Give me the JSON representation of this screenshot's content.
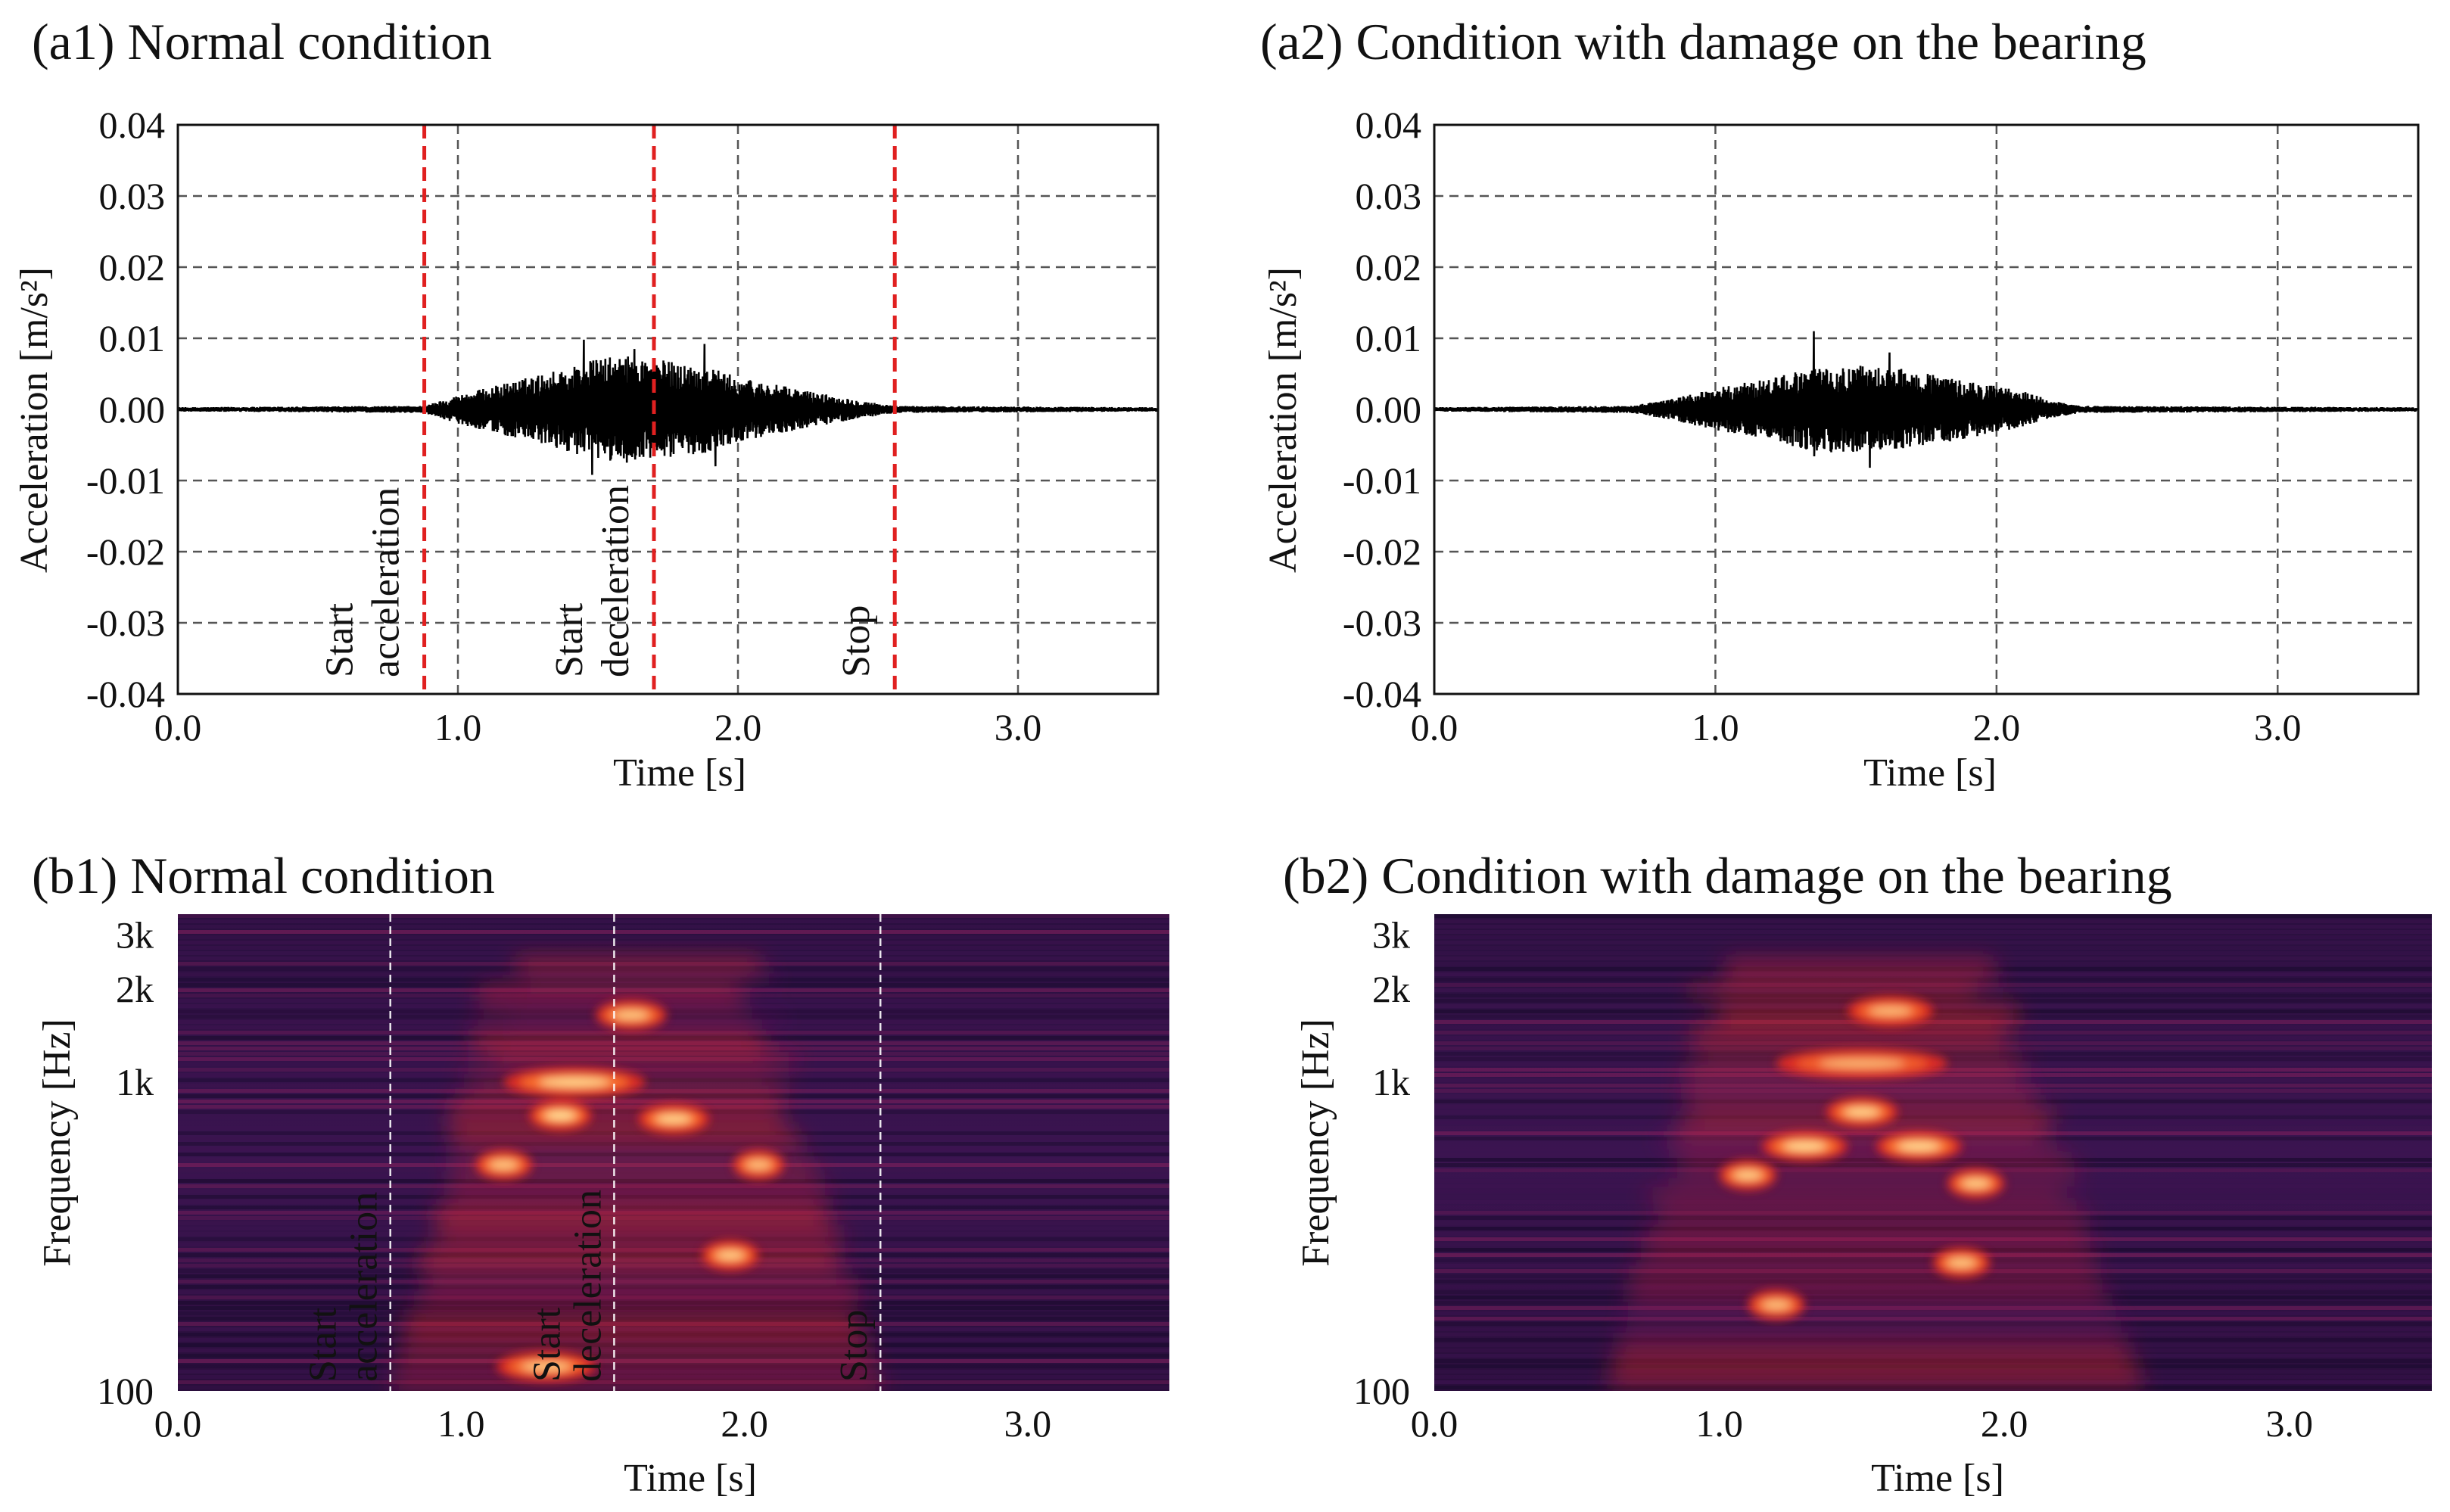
{
  "chart_data": [
    {
      "type": "line",
      "title": "(a1) Normal condition",
      "xlabel": "Time [s]",
      "ylabel": "Acceleration [m/s²]",
      "xlim": [
        0.0,
        3.5
      ],
      "ylim": [
        -0.04,
        0.04
      ],
      "xticks": [
        "0.0",
        "1.0",
        "2.0",
        "3.0"
      ],
      "yticks": [
        "0.04",
        "0.03",
        "0.02",
        "0.01",
        "0.00",
        "-0.01",
        "-0.02",
        "-0.03",
        "-0.04"
      ],
      "grid": true,
      "envelope": {
        "x": [
          0.0,
          0.88,
          1.0,
          1.2,
          1.4,
          1.5,
          1.6,
          1.7,
          1.8,
          1.9,
          2.0,
          2.2,
          2.4,
          2.56,
          3.5
        ],
        "upper": [
          0.0003,
          0.0005,
          0.002,
          0.004,
          0.006,
          0.0072,
          0.0075,
          0.0072,
          0.0065,
          0.006,
          0.0045,
          0.003,
          0.0015,
          0.0005,
          0.0003
        ],
        "lower": [
          -0.0003,
          -0.0005,
          -0.002,
          -0.004,
          -0.006,
          -0.0072,
          -0.0075,
          -0.0072,
          -0.0065,
          -0.006,
          -0.0045,
          -0.003,
          -0.0015,
          -0.0005,
          -0.0003
        ],
        "peaks": [
          {
            "x": 1.45,
            "y": 0.0098
          },
          {
            "x": 1.48,
            "y": -0.0092
          },
          {
            "x": 1.63,
            "y": 0.0085
          },
          {
            "x": 1.88,
            "y": 0.0092
          },
          {
            "x": 1.92,
            "y": -0.008
          }
        ]
      },
      "markers": [
        {
          "x": 0.88,
          "label_line1": "Start",
          "label_line2": "acceleration"
        },
        {
          "x": 1.7,
          "label_line1": "Start",
          "label_line2": "deceleration"
        },
        {
          "x": 2.56,
          "label_line1": "",
          "label_line2": "Stop"
        }
      ],
      "marker_color": "#e02020"
    },
    {
      "type": "line",
      "title": "(a2) Condition with damage on the bearing",
      "xlabel": "Time [s]",
      "ylabel": "Acceleration [m/s²]",
      "xlim": [
        0.0,
        3.5
      ],
      "ylim": [
        -0.04,
        0.04
      ],
      "xticks": [
        "0.0",
        "1.0",
        "2.0",
        "3.0"
      ],
      "yticks": [
        "0.04",
        "0.03",
        "0.02",
        "0.01",
        "0.00",
        "-0.01",
        "-0.02",
        "-0.03",
        "-0.04"
      ],
      "grid": true,
      "envelope": {
        "x": [
          0.0,
          0.7,
          0.85,
          1.0,
          1.2,
          1.3,
          1.4,
          1.5,
          1.6,
          1.7,
          1.9,
          2.1,
          2.2,
          2.3,
          3.5
        ],
        "upper": [
          0.0003,
          0.0005,
          0.0015,
          0.003,
          0.0045,
          0.0055,
          0.006,
          0.0062,
          0.006,
          0.0055,
          0.004,
          0.0025,
          0.0012,
          0.0005,
          0.0003
        ],
        "lower": [
          -0.0003,
          -0.0005,
          -0.0015,
          -0.003,
          -0.0045,
          -0.0055,
          -0.006,
          -0.0062,
          -0.006,
          -0.0055,
          -0.004,
          -0.0025,
          -0.0012,
          -0.0005,
          -0.0003
        ],
        "peaks": [
          {
            "x": 1.35,
            "y": 0.011
          },
          {
            "x": 1.55,
            "y": -0.0082
          },
          {
            "x": 1.62,
            "y": 0.008
          }
        ]
      },
      "markers": []
    },
    {
      "type": "heatmap",
      "title": "(b1) Normal condition",
      "xlabel": "Time [s]",
      "ylabel": "Frequency [Hz]",
      "xlim": [
        0.0,
        3.5
      ],
      "ylim": [
        100,
        3500
      ],
      "yscale": "log",
      "xticks": [
        "0.0",
        "1.0",
        "2.0",
        "3.0"
      ],
      "yticks": [
        "3k",
        "2k",
        "1k",
        "100"
      ],
      "colormap": [
        "#1a0b2e",
        "#3d1450",
        "#7a1f5c",
        "#c4213a",
        "#f0301e",
        "#ff7a30",
        "#ffe39a"
      ],
      "activity": {
        "start": 0.75,
        "end": 2.5
      },
      "hot_spots": [
        {
          "t": 1.4,
          "f": 1000,
          "w": 0.5,
          "i": 0.9
        },
        {
          "t": 1.35,
          "f": 780,
          "w": 0.22,
          "i": 1.0
        },
        {
          "t": 1.75,
          "f": 760,
          "w": 0.25,
          "i": 0.9
        },
        {
          "t": 1.6,
          "f": 1650,
          "w": 0.25,
          "i": 0.8
        },
        {
          "t": 1.15,
          "f": 540,
          "w": 0.2,
          "i": 0.8
        },
        {
          "t": 2.05,
          "f": 540,
          "w": 0.18,
          "i": 0.75
        },
        {
          "t": 1.95,
          "f": 275,
          "w": 0.2,
          "i": 0.85
        },
        {
          "t": 1.3,
          "f": 120,
          "w": 0.35,
          "i": 0.8
        }
      ],
      "markers": [
        {
          "x": 0.75,
          "label_line1": "Start",
          "label_line2": "acceleration"
        },
        {
          "x": 1.54,
          "label_line1": "Start",
          "label_line2": "deceleration"
        },
        {
          "x": 2.48,
          "label_line1": "",
          "label_line2": "Stop"
        }
      ],
      "marker_color": "#ffffff"
    },
    {
      "type": "heatmap",
      "title": "(b2) Condition with damage on the bearing",
      "xlabel": "Time [s]",
      "ylabel": "Frequency [Hz]",
      "xlim": [
        0.0,
        3.5
      ],
      "ylim": [
        100,
        3500
      ],
      "yscale": "log",
      "xticks": [
        "0.0",
        "1.0",
        "2.0",
        "3.0"
      ],
      "yticks": [
        "3k",
        "2k",
        "1k",
        "100"
      ],
      "colormap": [
        "#1a0b2e",
        "#3d1450",
        "#7a1f5c",
        "#c4213a",
        "#f0301e",
        "#ff7a30",
        "#ffe39a"
      ],
      "activity": {
        "start": 0.6,
        "end": 2.5
      },
      "hot_spots": [
        {
          "t": 1.3,
          "f": 620,
          "w": 0.3,
          "i": 0.95
        },
        {
          "t": 1.7,
          "f": 620,
          "w": 0.3,
          "i": 0.95
        },
        {
          "t": 1.5,
          "f": 800,
          "w": 0.25,
          "i": 0.9
        },
        {
          "t": 1.1,
          "f": 500,
          "w": 0.2,
          "i": 0.85
        },
        {
          "t": 1.9,
          "f": 470,
          "w": 0.2,
          "i": 0.85
        },
        {
          "t": 1.6,
          "f": 1700,
          "w": 0.3,
          "i": 0.7
        },
        {
          "t": 1.2,
          "f": 190,
          "w": 0.2,
          "i": 0.75
        },
        {
          "t": 1.85,
          "f": 260,
          "w": 0.2,
          "i": 0.8
        },
        {
          "t": 1.5,
          "f": 1150,
          "w": 0.6,
          "i": 0.65
        }
      ],
      "markers": []
    }
  ]
}
